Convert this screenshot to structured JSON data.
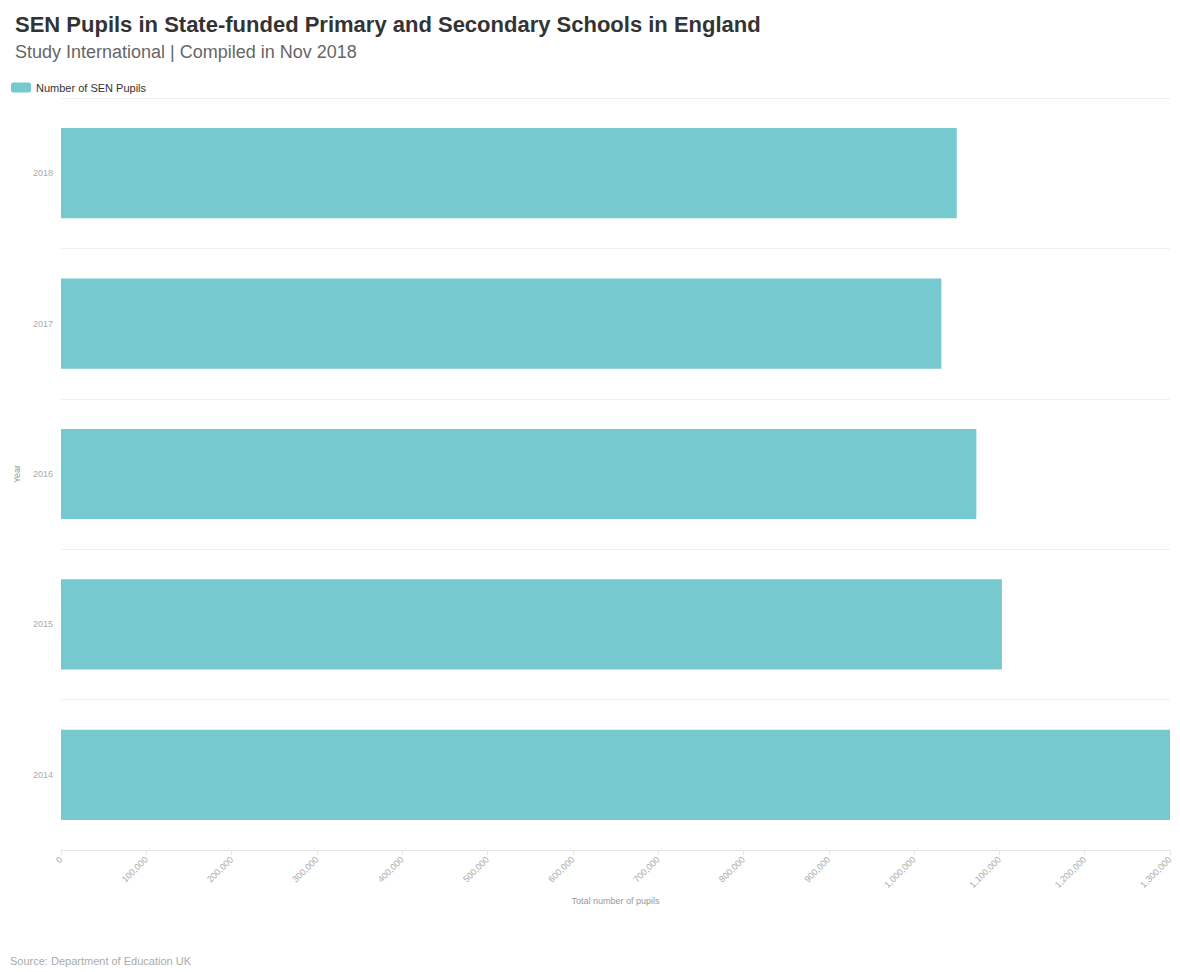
{
  "chart_data": {
    "type": "bar",
    "orientation": "horizontal",
    "title": "SEN Pupils in State-funded Primary and Secondary Schools in England",
    "subtitle": "Study International | Compiled in Nov 2018",
    "source": "Source: Department of Education UK",
    "x_label": "Total number of pupils",
    "y_label": "Year",
    "categories": [
      "2014",
      "2015",
      "2016",
      "2017",
      "2018"
    ],
    "series": [
      {
        "name": "Number of SEN Pupils",
        "color": "#75c9cf",
        "values": [
          1300000,
          1103000,
          1073000,
          1032000,
          1050000
        ]
      }
    ],
    "xlim": [
      0,
      1300000
    ],
    "xticks": [
      0,
      {
        "value": 100000,
        "label": "100,000"
      },
      {
        "value": 200000,
        "label": "200,000"
      },
      {
        "value": 300000,
        "label": "300,000"
      },
      {
        "value": 400000,
        "label": "400,000"
      },
      {
        "value": 500000,
        "label": "500,000"
      },
      {
        "value": 600000,
        "label": "600,000"
      },
      {
        "value": 700000,
        "label": "700,000"
      },
      {
        "value": 800000,
        "label": "800,000"
      },
      {
        "value": 900000,
        "label": "900,000"
      },
      {
        "value": 1000000,
        "label": "1,000,000"
      },
      {
        "value": 1100000,
        "label": "1,100,000"
      },
      {
        "value": 1200000,
        "label": "1,200,000"
      },
      {
        "value": 1300000,
        "label": "1,300,000"
      }
    ],
    "grid": true,
    "legend": "top-left"
  }
}
